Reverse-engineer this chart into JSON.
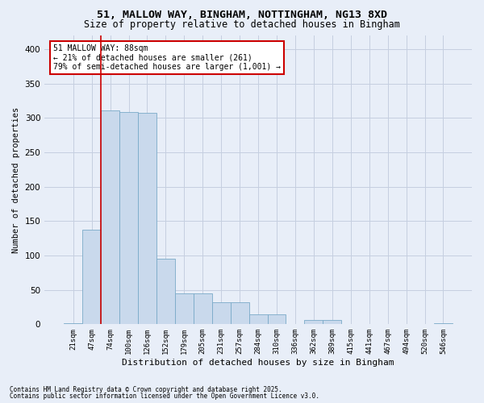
{
  "title_line1": "51, MALLOW WAY, BINGHAM, NOTTINGHAM, NG13 8XD",
  "title_line2": "Size of property relative to detached houses in Bingham",
  "xlabel": "Distribution of detached houses by size in Bingham",
  "ylabel": "Number of detached properties",
  "categories": [
    "21sqm",
    "47sqm",
    "74sqm",
    "100sqm",
    "126sqm",
    "152sqm",
    "179sqm",
    "205sqm",
    "231sqm",
    "257sqm",
    "284sqm",
    "310sqm",
    "336sqm",
    "362sqm",
    "389sqm",
    "415sqm",
    "441sqm",
    "467sqm",
    "494sqm",
    "520sqm",
    "546sqm"
  ],
  "values": [
    2,
    138,
    311,
    309,
    308,
    95,
    45,
    45,
    32,
    32,
    14,
    14,
    0,
    6,
    6,
    0,
    0,
    0,
    0,
    0,
    2
  ],
  "bar_color": "#c9d9ec",
  "bar_edge_color": "#7aaac8",
  "grid_color": "#c5cfe0",
  "background_color": "#e8eef8",
  "vline_color": "#cc0000",
  "vline_x_index": 2,
  "annotation_text": "51 MALLOW WAY: 88sqm\n← 21% of detached houses are smaller (261)\n79% of semi-detached houses are larger (1,001) →",
  "annotation_box_color": "#ffffff",
  "annotation_edge_color": "#cc0000",
  "footnote_line1": "Contains HM Land Registry data © Crown copyright and database right 2025.",
  "footnote_line2": "Contains public sector information licensed under the Open Government Licence v3.0.",
  "ylim": [
    0,
    420
  ],
  "yticks": [
    0,
    50,
    100,
    150,
    200,
    250,
    300,
    350,
    400
  ],
  "title_fontsize": 9.5,
  "subtitle_fontsize": 8.5,
  "bar_linewidth": 0.6,
  "footnote_fontsize": 5.5
}
